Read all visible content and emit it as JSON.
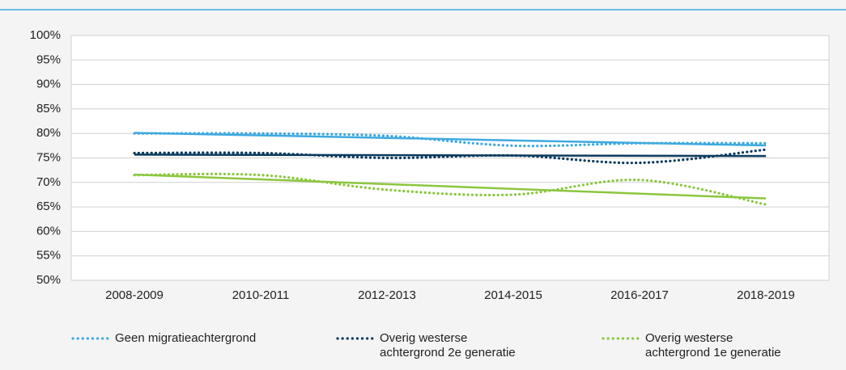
{
  "chart_data": {
    "type": "line",
    "categories": [
      "2008-2009",
      "2010-2011",
      "2012-2013",
      "2014-2015",
      "2016-2017",
      "2018-2019"
    ],
    "series": [
      {
        "name": "Geen migratieachtergrond",
        "color": "#3fa9e0",
        "values": [
          80,
          80,
          79.5,
          77.5,
          78,
          78
        ]
      },
      {
        "name": "Overig westerse achtergrond 2e generatie",
        "color": "#0b3a5e",
        "values": [
          76,
          76,
          75,
          75.5,
          74,
          76.7
        ]
      },
      {
        "name": "Overig westerse achtergrond 1e generatie",
        "color": "#8cc63f",
        "values": [
          71.5,
          71.5,
          68.5,
          67.5,
          70.5,
          65.5
        ]
      }
    ],
    "ylim": [
      50,
      100
    ],
    "yticks": [
      {
        "value": 50,
        "label": "50%"
      },
      {
        "value": 55,
        "label": "55%"
      },
      {
        "value": 60,
        "label": "60%"
      },
      {
        "value": 65,
        "label": "65%"
      },
      {
        "value": 70,
        "label": "70%"
      },
      {
        "value": 75,
        "label": "75%"
      },
      {
        "value": 80,
        "label": "80%"
      },
      {
        "value": 85,
        "label": "85%"
      },
      {
        "value": 90,
        "label": "90%"
      },
      {
        "value": 95,
        "label": "95%"
      },
      {
        "value": 100,
        "label": "100%"
      }
    ],
    "grid": true,
    "legend": "bottom",
    "trendline": true
  }
}
